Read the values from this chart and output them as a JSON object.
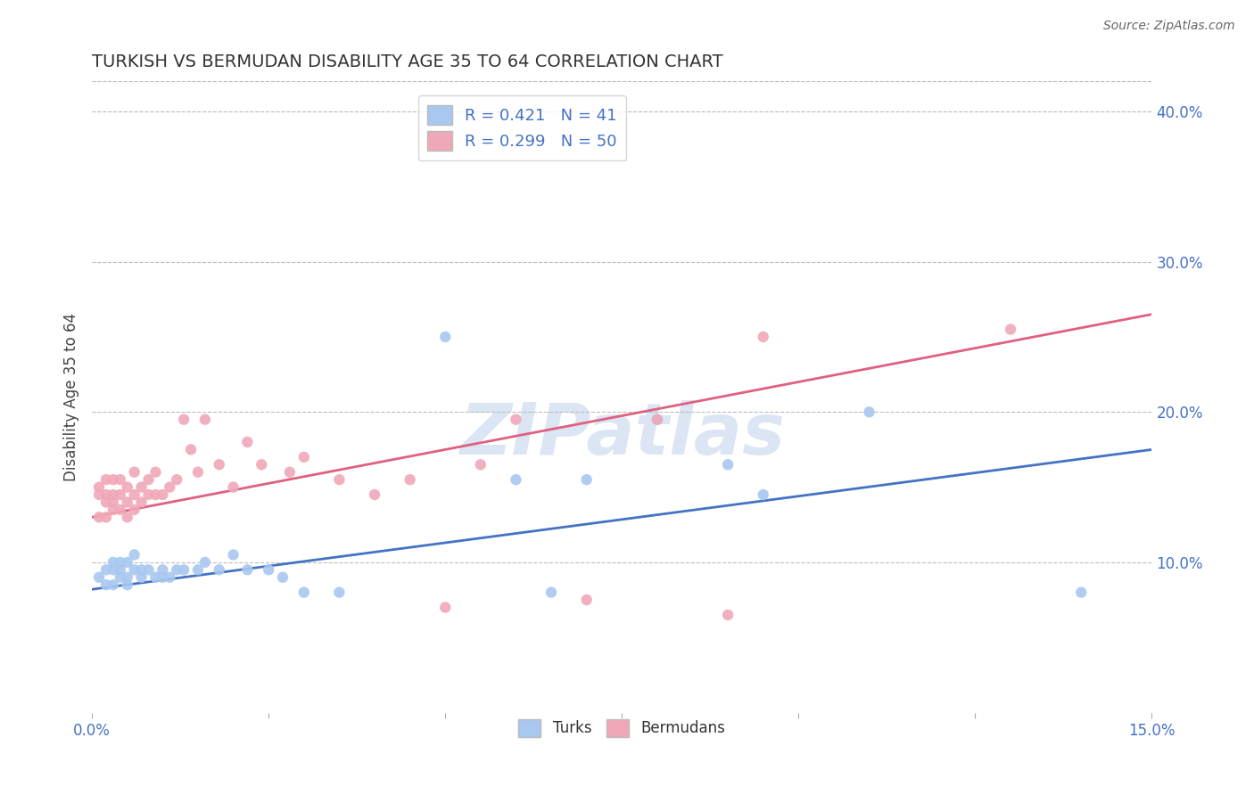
{
  "title": "TURKISH VS BERMUDAN DISABILITY AGE 35 TO 64 CORRELATION CHART",
  "source": "Source: ZipAtlas.com",
  "ylabel": "Disability Age 35 to 64",
  "xlim": [
    0.0,
    0.15
  ],
  "ylim": [
    0.0,
    0.42
  ],
  "xticks": [
    0.0,
    0.025,
    0.05,
    0.075,
    0.1,
    0.125,
    0.15
  ],
  "xticklabels": [
    "0.0%",
    "",
    "",
    "",
    "",
    "",
    "15.0%"
  ],
  "turks_R": 0.421,
  "turks_N": 41,
  "bermudans_R": 0.299,
  "bermudans_N": 50,
  "turks_color": "#a8c8f0",
  "bermudans_color": "#f0a8b8",
  "turks_line_color": "#4472c4",
  "bermudans_line_color": "#e06080",
  "turks_x": [
    0.001,
    0.002,
    0.002,
    0.003,
    0.003,
    0.003,
    0.004,
    0.004,
    0.004,
    0.005,
    0.005,
    0.005,
    0.006,
    0.006,
    0.007,
    0.007,
    0.008,
    0.009,
    0.01,
    0.01,
    0.011,
    0.012,
    0.013,
    0.015,
    0.016,
    0.018,
    0.02,
    0.022,
    0.025,
    0.027,
    0.03,
    0.035,
    0.05,
    0.06,
    0.065,
    0.07,
    0.08,
    0.09,
    0.095,
    0.11,
    0.14
  ],
  "turks_y": [
    0.09,
    0.085,
    0.095,
    0.085,
    0.095,
    0.1,
    0.09,
    0.095,
    0.1,
    0.085,
    0.09,
    0.1,
    0.095,
    0.105,
    0.09,
    0.095,
    0.095,
    0.09,
    0.09,
    0.095,
    0.09,
    0.095,
    0.095,
    0.095,
    0.1,
    0.095,
    0.105,
    0.095,
    0.095,
    0.09,
    0.08,
    0.08,
    0.25,
    0.155,
    0.08,
    0.155,
    0.195,
    0.165,
    0.145,
    0.2,
    0.08
  ],
  "bermudans_x": [
    0.001,
    0.001,
    0.001,
    0.002,
    0.002,
    0.002,
    0.002,
    0.003,
    0.003,
    0.003,
    0.003,
    0.004,
    0.004,
    0.004,
    0.005,
    0.005,
    0.005,
    0.006,
    0.006,
    0.006,
    0.007,
    0.007,
    0.008,
    0.008,
    0.009,
    0.009,
    0.01,
    0.011,
    0.012,
    0.013,
    0.014,
    0.015,
    0.016,
    0.018,
    0.02,
    0.022,
    0.024,
    0.028,
    0.03,
    0.035,
    0.04,
    0.045,
    0.05,
    0.055,
    0.06,
    0.07,
    0.08,
    0.09,
    0.095,
    0.13
  ],
  "bermudans_y": [
    0.13,
    0.145,
    0.15,
    0.13,
    0.14,
    0.145,
    0.155,
    0.135,
    0.14,
    0.145,
    0.155,
    0.135,
    0.145,
    0.155,
    0.13,
    0.14,
    0.15,
    0.135,
    0.145,
    0.16,
    0.14,
    0.15,
    0.145,
    0.155,
    0.145,
    0.16,
    0.145,
    0.15,
    0.155,
    0.195,
    0.175,
    0.16,
    0.195,
    0.165,
    0.15,
    0.18,
    0.165,
    0.16,
    0.17,
    0.155,
    0.145,
    0.155,
    0.07,
    0.165,
    0.195,
    0.075,
    0.195,
    0.065,
    0.25,
    0.255
  ],
  "turks_line_x0": 0.0,
  "turks_line_y0": 0.082,
  "turks_line_x1": 0.15,
  "turks_line_y1": 0.175,
  "bermudans_line_x0": 0.0,
  "bermudans_line_y0": 0.13,
  "bermudans_line_x1": 0.15,
  "bermudans_line_y1": 0.265
}
